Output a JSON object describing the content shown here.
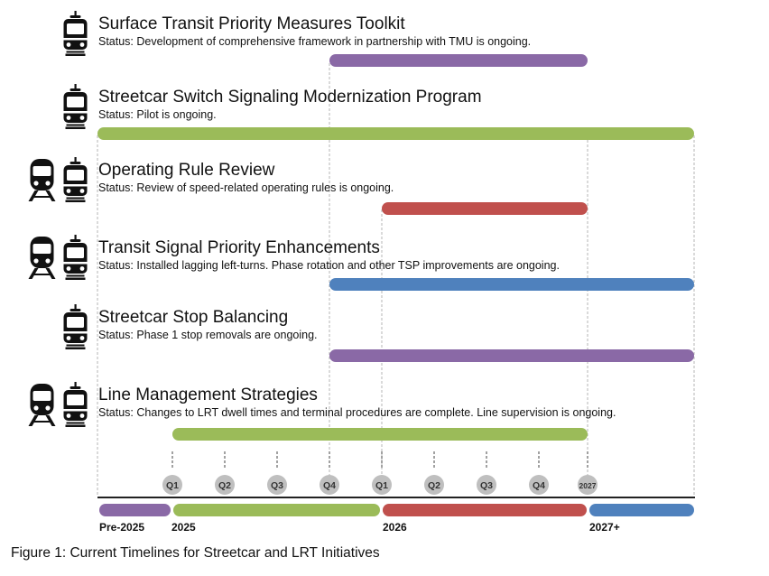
{
  "colors": {
    "purple": "#8a69a6",
    "green": "#9bbb59",
    "red": "#c0504d",
    "blue": "#4f81bd",
    "quarter_badge": "#bfbfbf",
    "axis": "#222222",
    "guide": "#b5b5b5"
  },
  "initiatives": [
    {
      "title": "Surface Transit Priority Measures Toolkit",
      "status": "Status: Development of comprehensive framework in partnership with TMU is ongoing.",
      "icons": [
        "streetcar-icon"
      ],
      "bar": {
        "start": "2025 Q4",
        "end": "2027",
        "color": "purple"
      }
    },
    {
      "title": "Streetcar Switch Signaling Modernization Program",
      "status": "Status: Pilot is ongoing.",
      "icons": [
        "streetcar-icon"
      ],
      "bar": {
        "start": "Pre-2025",
        "end": "2027+",
        "color": "green"
      }
    },
    {
      "title": "Operating Rule Review",
      "status": "Status: Review of speed-related operating rules is ongoing.",
      "icons": [
        "lrt-train-icon",
        "streetcar-icon"
      ],
      "bar": {
        "start": "2026 Q1",
        "end": "2027",
        "color": "red"
      }
    },
    {
      "title": "Transit Signal Priority Enhancements",
      "status": "Status: Installed lagging left-turns. Phase rotation and other TSP improvements are ongoing.",
      "icons": [
        "lrt-train-icon",
        "streetcar-icon"
      ],
      "bar": {
        "start": "2025 Q4",
        "end": "2027+",
        "color": "blue"
      }
    },
    {
      "title": "Streetcar Stop Balancing",
      "status": "Status: Phase 1 stop removals are ongoing.",
      "icons": [
        "streetcar-icon"
      ],
      "bar": {
        "start": "2025 Q4",
        "end": "2027+",
        "color": "purple"
      }
    },
    {
      "title": "Line Management Strategies",
      "status": "Status: Changes to LRT dwell times and terminal procedures are complete. Line supervision is ongoing.",
      "icons": [
        "lrt-train-icon",
        "streetcar-icon"
      ],
      "bar": {
        "start": "2025 Q1",
        "end": "2027",
        "color": "green"
      }
    }
  ],
  "timeline": {
    "quarters": [
      "Q1",
      "Q2",
      "Q3",
      "Q4",
      "Q1",
      "Q2",
      "Q3",
      "Q4",
      "2027"
    ],
    "periods": [
      {
        "label": "Pre-2025",
        "color": "purple"
      },
      {
        "label": "2025",
        "color": "green"
      },
      {
        "label": "2026",
        "color": "red"
      },
      {
        "label": "2027+",
        "color": "blue"
      }
    ]
  },
  "caption": "Figure 1: Current Timelines for Streetcar and LRT Initiatives"
}
